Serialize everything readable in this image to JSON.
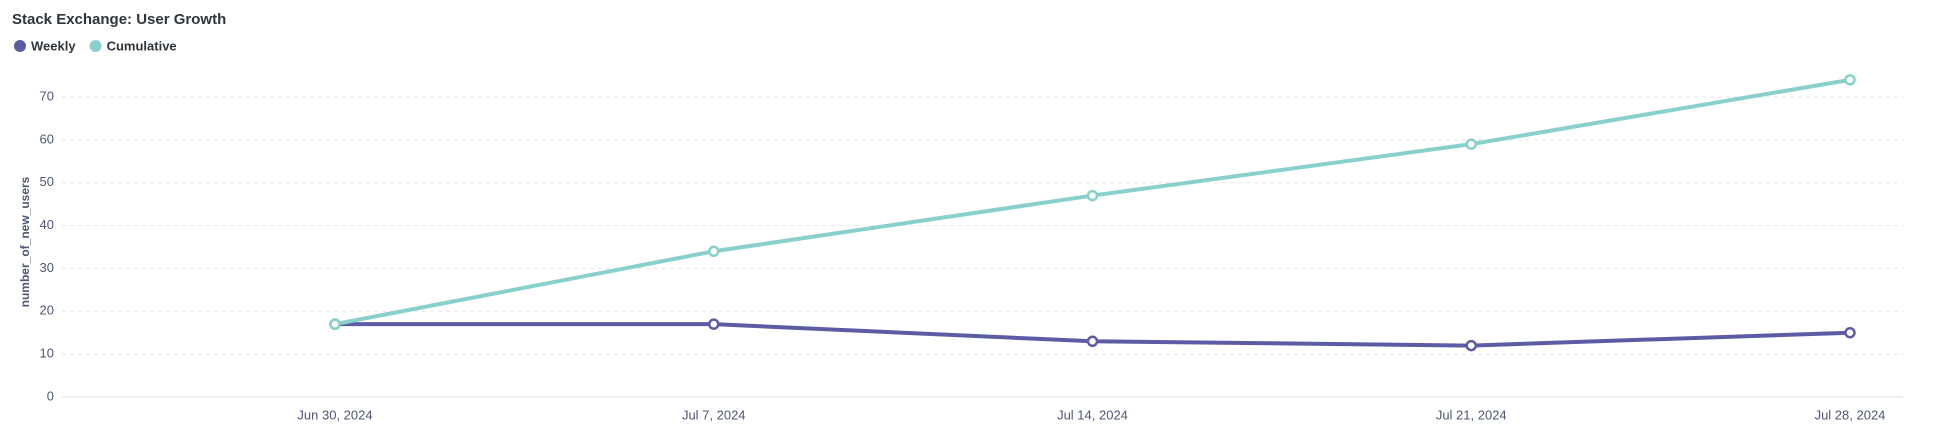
{
  "chart_data": {
    "type": "line",
    "title": "Stack Exchange: User Growth",
    "y_label": "number_of_new_users",
    "categories": [
      "Jun 30, 2024",
      "Jul 7, 2024",
      "Jul 14, 2024",
      "Jul 21, 2024",
      "Jul 28, 2024"
    ],
    "series": [
      {
        "name": "Weekly",
        "color": "#5b5ca3",
        "values": [
          17,
          17,
          13,
          12,
          15
        ]
      },
      {
        "name": "Cumulative",
        "color": "#88d0cc",
        "values": [
          17,
          34,
          47,
          59,
          74
        ]
      }
    ],
    "ylim": [
      0,
      77
    ],
    "yticks": [
      0,
      10,
      20,
      30,
      40,
      50,
      60,
      70
    ],
    "grid": true
  }
}
